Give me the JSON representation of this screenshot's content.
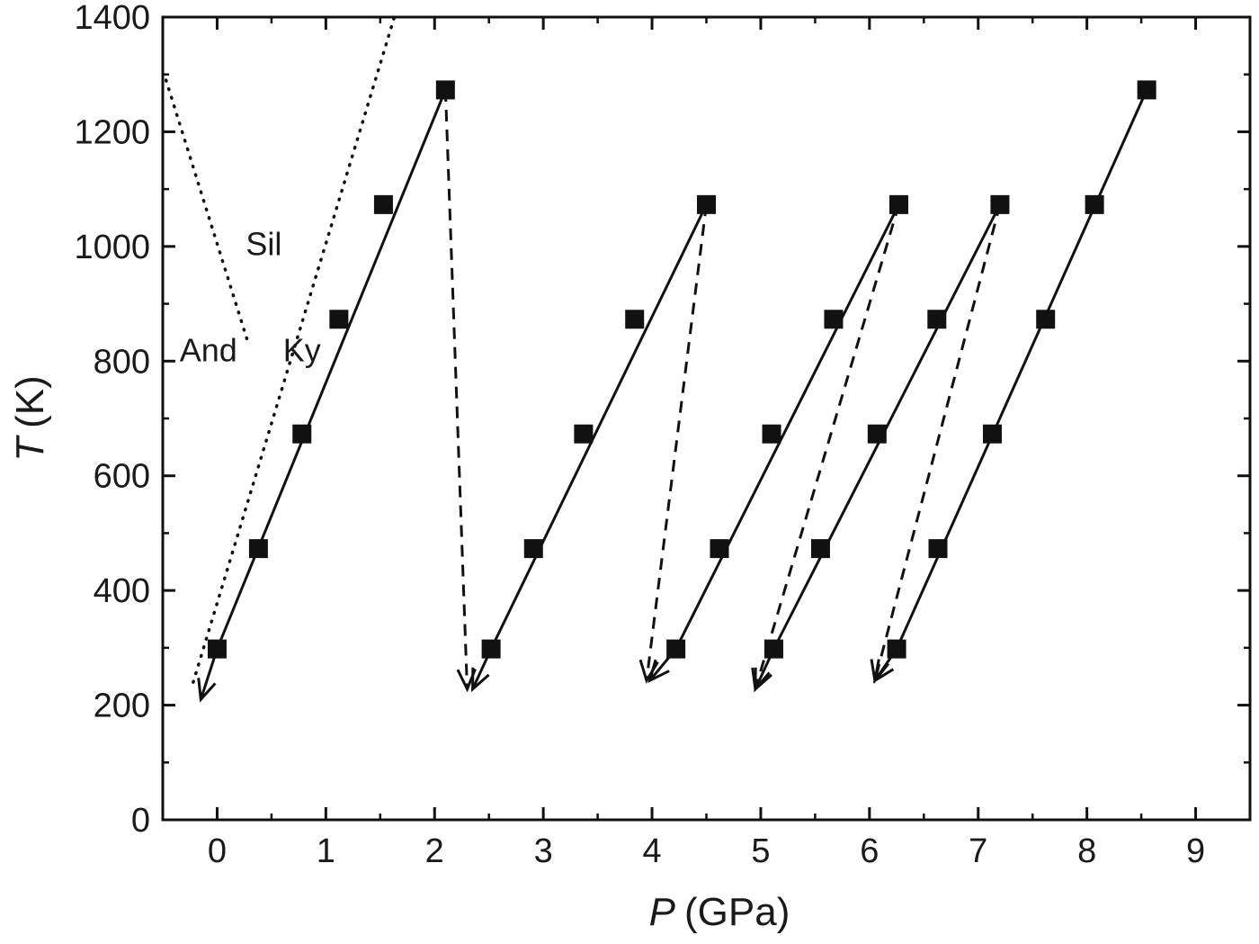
{
  "chart_data": {
    "type": "scatter",
    "title": "",
    "xlabel": {
      "symbol": "P",
      "unit": "(GPa)"
    },
    "ylabel": {
      "symbol": "T",
      "unit": "(K)"
    },
    "xlim": [
      -0.5,
      9.5
    ],
    "ylim": [
      0,
      1400
    ],
    "xticks": [
      0,
      1,
      2,
      3,
      4,
      5,
      6,
      7,
      8,
      9
    ],
    "yticks": [
      0,
      200,
      400,
      600,
      800,
      1000,
      1200,
      1400
    ],
    "grid": false,
    "legend": "none",
    "point_color": "#111111",
    "series": [
      {
        "points": [
          [
            0.0,
            298
          ],
          [
            0.38,
            473
          ],
          [
            0.78,
            673
          ],
          [
            1.12,
            873
          ],
          [
            1.53,
            1073
          ],
          [
            2.1,
            1273
          ]
        ],
        "fit_line": [
          [
            0.0,
            298
          ],
          [
            2.1,
            1273
          ]
        ],
        "unload": {
          "from": [
            2.1,
            1273
          ],
          "to": [
            2.3,
            228
          ]
        },
        "start_arrow_to": [
          -0.15,
          210
        ]
      },
      {
        "points": [
          [
            2.52,
            298
          ],
          [
            2.91,
            473
          ],
          [
            3.37,
            673
          ],
          [
            3.84,
            873
          ],
          [
            4.5,
            1073
          ]
        ],
        "fit_line": [
          [
            2.52,
            298
          ],
          [
            4.5,
            1073
          ]
        ],
        "unload": {
          "from": [
            4.5,
            1073
          ],
          "to": [
            3.95,
            243
          ]
        },
        "start_arrow_to": [
          2.35,
          228
        ]
      },
      {
        "points": [
          [
            4.22,
            298
          ],
          [
            4.62,
            473
          ],
          [
            5.1,
            673
          ],
          [
            5.67,
            873
          ],
          [
            6.27,
            1073
          ]
        ],
        "fit_line": [
          [
            4.22,
            298
          ],
          [
            6.27,
            1073
          ]
        ],
        "unload": {
          "from": [
            6.27,
            1073
          ],
          "to": [
            4.95,
            228
          ]
        },
        "start_arrow_to": [
          3.98,
          243
        ]
      },
      {
        "points": [
          [
            5.12,
            298
          ],
          [
            5.55,
            473
          ],
          [
            6.07,
            673
          ],
          [
            6.62,
            873
          ],
          [
            7.2,
            1073
          ]
        ],
        "fit_line": [
          [
            5.12,
            298
          ],
          [
            7.2,
            1073
          ]
        ],
        "unload": {
          "from": [
            7.2,
            1073
          ],
          "to": [
            6.05,
            243
          ]
        },
        "start_arrow_to": [
          4.95,
          228
        ]
      },
      {
        "points": [
          [
            6.25,
            298
          ],
          [
            6.63,
            473
          ],
          [
            7.13,
            673
          ],
          [
            7.62,
            873
          ],
          [
            8.07,
            1073
          ],
          [
            8.55,
            1273
          ]
        ],
        "fit_line": [
          [
            6.25,
            298
          ],
          [
            8.55,
            1273
          ]
        ],
        "start_arrow_to": [
          6.05,
          243
        ]
      }
    ],
    "phase_boundaries": [
      {
        "points": [
          [
            -0.47,
            1290
          ],
          [
            0.28,
            835
          ]
        ]
      },
      {
        "points": [
          [
            -0.22,
            240
          ],
          [
            1.63,
            1400
          ]
        ]
      }
    ],
    "region_labels": [
      {
        "text": "Sil",
        "x": 0.43,
        "y": 985
      },
      {
        "text": "And",
        "x": -0.08,
        "y": 800
      },
      {
        "text": "Ky",
        "x": 0.78,
        "y": 800
      }
    ]
  }
}
